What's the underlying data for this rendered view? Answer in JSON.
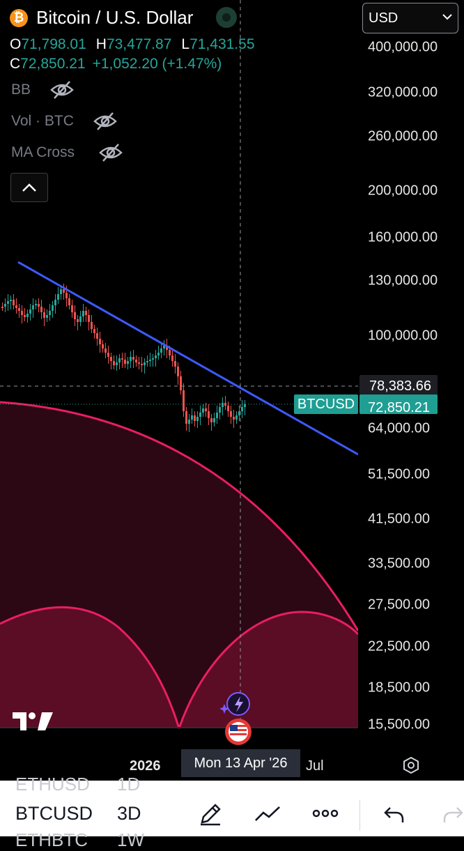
{
  "header": {
    "title": "Bitcoin / U.S. Dollar",
    "logo_glyph": "₿",
    "currency": "USD"
  },
  "ohlc": {
    "o_label": "O",
    "o_value": "71,798.01",
    "h_label": "H",
    "h_value": "73,477.87",
    "l_label": "L",
    "l_value": "71,431.55",
    "c_label": "C",
    "c_value": "72,850.21",
    "change": "+1,052.20 (+1.47%)"
  },
  "studies": [
    {
      "label": "BB",
      "icon": "eye-off-icon"
    },
    {
      "label": "Vol · BTC",
      "icon": "eye-off-icon"
    },
    {
      "label": "MA Cross",
      "icon": "eye-off-icon"
    }
  ],
  "price_axis": {
    "ticks": [
      "400,000.00",
      "320,000.00",
      "260,000.00",
      "200,000.00",
      "160,000.00",
      "130,000.00",
      "100,000.00",
      "64,000.00",
      "51,500.00",
      "41,500.00",
      "33,500.00",
      "27,500.00",
      "22,500.00",
      "18,500.00",
      "15,500.00"
    ],
    "crosshair_price": "78,383.66",
    "last_price": "72,850.21",
    "symbol_tag": "BTCUSD"
  },
  "time_axis": {
    "year_label": "2026",
    "crosshair_date": "Mon 13 Apr '26",
    "month_label": "Jul"
  },
  "bottom_bar": {
    "ghost_above": "ETHUSD",
    "ghost_above_tf": "1D",
    "symbol": "BTCUSD",
    "timeframe": "3D",
    "ghost_below": "ETHBTC",
    "ghost_below_tf": "1W"
  },
  "colors": {
    "background": "#000000",
    "up_candle": "#26a69a",
    "down_candle": "#ef5350",
    "trendline": "#3d5afe",
    "arc": "#e91e63",
    "arc_fill": "#5a0d24",
    "accent_teal": "#1f9e93"
  },
  "icons": [
    "bitcoin-logo-icon",
    "eye-off-icon",
    "chevron-up-icon",
    "chevron-down-icon",
    "tradingview-logo-icon",
    "ai-sparkle-icon",
    "us-flag-icon",
    "settings-hexagon-icon",
    "pencil-icon",
    "drawing-tools-icon",
    "more-icon",
    "undo-icon",
    "redo-icon"
  ]
}
